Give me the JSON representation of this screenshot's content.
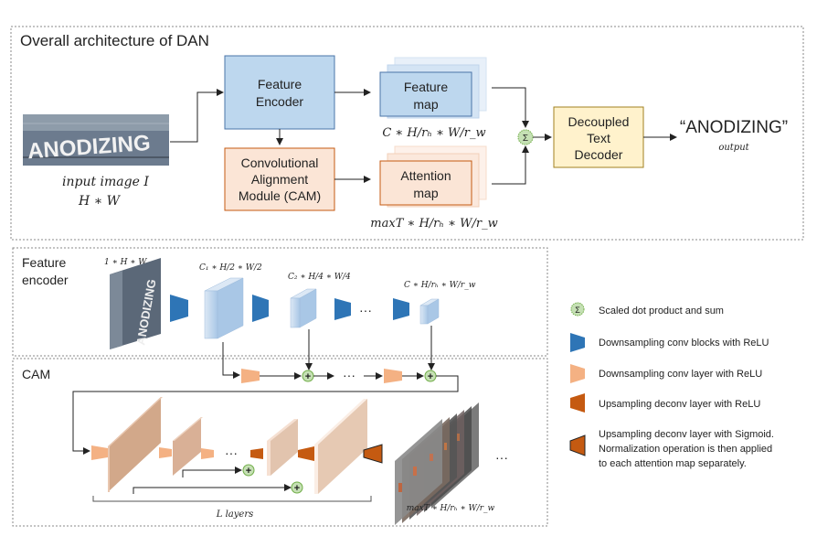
{
  "overall": {
    "title": "Overall architecture of DAN",
    "feature_encoder": [
      "Feature",
      "Encoder"
    ],
    "cam": [
      "Convolutional",
      "Alignment",
      "Module (CAM)"
    ],
    "feature_map": [
      "Feature",
      "map"
    ],
    "attention_map": [
      "Attention",
      "map"
    ],
    "feature_map_dims": "C ∗ H/rₕ ∗ W/r_w",
    "attention_map_dims": "maxT ∗ H/rₕ ∗ W/r_w",
    "decoder": [
      "Decoupled",
      "Text",
      "Decoder"
    ],
    "output_text": "“ANODIZING”",
    "output_label": "output",
    "input_label": "input image I",
    "input_dims": "H ∗ W",
    "image_text": "ANODIZING",
    "sigma": "Σ"
  },
  "encoder_panel": {
    "title": [
      "Feature",
      "encoder"
    ],
    "dims": [
      "1 ∗ H ∗ W",
      "C₁ ∗ H/2 ∗ W/2",
      "C₂ ∗ H/4 ∗ W/4",
      "C ∗ H/rₕ ∗ W/r_w"
    ],
    "ellipsis": "···"
  },
  "cam_panel": {
    "title": "CAM",
    "layers_label": "L layers",
    "attention_dims": "maxT ∗ H/rₕ ∗ W/r_w",
    "ellipsis": "···"
  },
  "legend": [
    {
      "icon": "sigma-circle",
      "text": [
        "Scaled dot product and sum"
      ]
    },
    {
      "icon": "dark-blue-trapezoid",
      "text": [
        "Downsampling conv blocks with ReLU"
      ]
    },
    {
      "icon": "light-orange-trapezoid",
      "text": [
        "Downsampling conv layer with ReLU"
      ]
    },
    {
      "icon": "dark-orange-trapezoid",
      "text": [
        "Upsampling deconv layer with ReLU"
      ]
    },
    {
      "icon": "outlined-orange-trapezoid",
      "text": [
        "Upsampling deconv layer with Sigmoid.",
        "Normalization operation is then applied",
        "to each attention map separately."
      ]
    }
  ],
  "colors": {
    "encoder_fill": "#bdd7ee",
    "encoder_stroke": "#4a74a8",
    "cam_fill": "#fbe5d6",
    "cam_stroke": "#c55a11",
    "decoder_fill": "#fff2cc",
    "decoder_stroke": "#a08020",
    "dark_blue": "#2e75b6",
    "light_orange": "#f4b183",
    "dark_orange": "#c55a11",
    "sigma_green": "#c5e0b4"
  }
}
